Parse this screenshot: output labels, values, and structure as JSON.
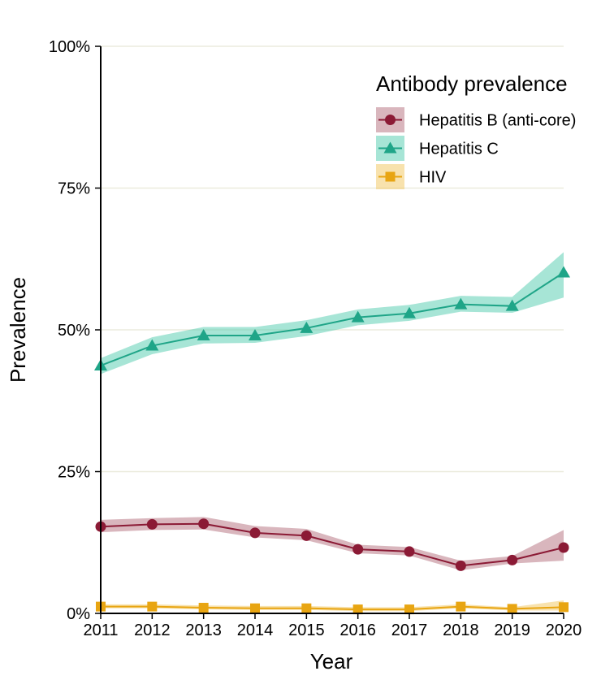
{
  "chart_data": {
    "type": "line",
    "title": "",
    "xlabel": "Year",
    "ylabel": "Prevalence",
    "x": [
      2011,
      2012,
      2013,
      2014,
      2015,
      2016,
      2017,
      2018,
      2019,
      2020
    ],
    "x_ticks": [
      "2011",
      "2012",
      "2013",
      "2014",
      "2015",
      "2016",
      "2017",
      "2018",
      "2019",
      "2020"
    ],
    "ylim": [
      0,
      1
    ],
    "y_ticks": [
      {
        "value": 0,
        "label": "0%"
      },
      {
        "value": 0.25,
        "label": "25%"
      },
      {
        "value": 0.5,
        "label": "50%"
      },
      {
        "value": 0.75,
        "label": "75%"
      },
      {
        "value": 1,
        "label": "100%"
      }
    ],
    "grid": "horizontal",
    "legend": {
      "title": "Antibody prevalence",
      "placement": "top-right"
    },
    "series": [
      {
        "name": "Hepatitis B (anti-core)",
        "color": "#8B1A35",
        "band_color": "#B97A86",
        "marker": "circle",
        "values": [
          0.153,
          0.157,
          0.158,
          0.142,
          0.137,
          0.113,
          0.109,
          0.084,
          0.094,
          0.116
        ],
        "lower": [
          0.143,
          0.147,
          0.148,
          0.134,
          0.129,
          0.106,
          0.102,
          0.076,
          0.088,
          0.093
        ],
        "upper": [
          0.165,
          0.168,
          0.17,
          0.154,
          0.149,
          0.121,
          0.117,
          0.093,
          0.101,
          0.147
        ]
      },
      {
        "name": "Hepatitis C",
        "color": "#1FA588",
        "band_color": "#5FD0B4",
        "marker": "triangle",
        "values": [
          0.437,
          0.472,
          0.49,
          0.49,
          0.503,
          0.522,
          0.529,
          0.545,
          0.542,
          0.601
        ],
        "lower": [
          0.422,
          0.457,
          0.476,
          0.477,
          0.489,
          0.508,
          0.516,
          0.532,
          0.53,
          0.557
        ],
        "upper": [
          0.45,
          0.487,
          0.505,
          0.505,
          0.517,
          0.536,
          0.544,
          0.56,
          0.558,
          0.637
        ]
      },
      {
        "name": "HIV",
        "color": "#E8A512",
        "band_color": "#F3CB6A",
        "marker": "square",
        "values": [
          0.012,
          0.012,
          0.01,
          0.009,
          0.009,
          0.007,
          0.007,
          0.012,
          0.008,
          0.011
        ],
        "lower": [
          0.009,
          0.009,
          0.007,
          0.006,
          0.006,
          0.004,
          0.004,
          0.009,
          0.005,
          0.005
        ],
        "upper": [
          0.016,
          0.016,
          0.014,
          0.013,
          0.013,
          0.011,
          0.011,
          0.016,
          0.011,
          0.023
        ]
      }
    ]
  }
}
